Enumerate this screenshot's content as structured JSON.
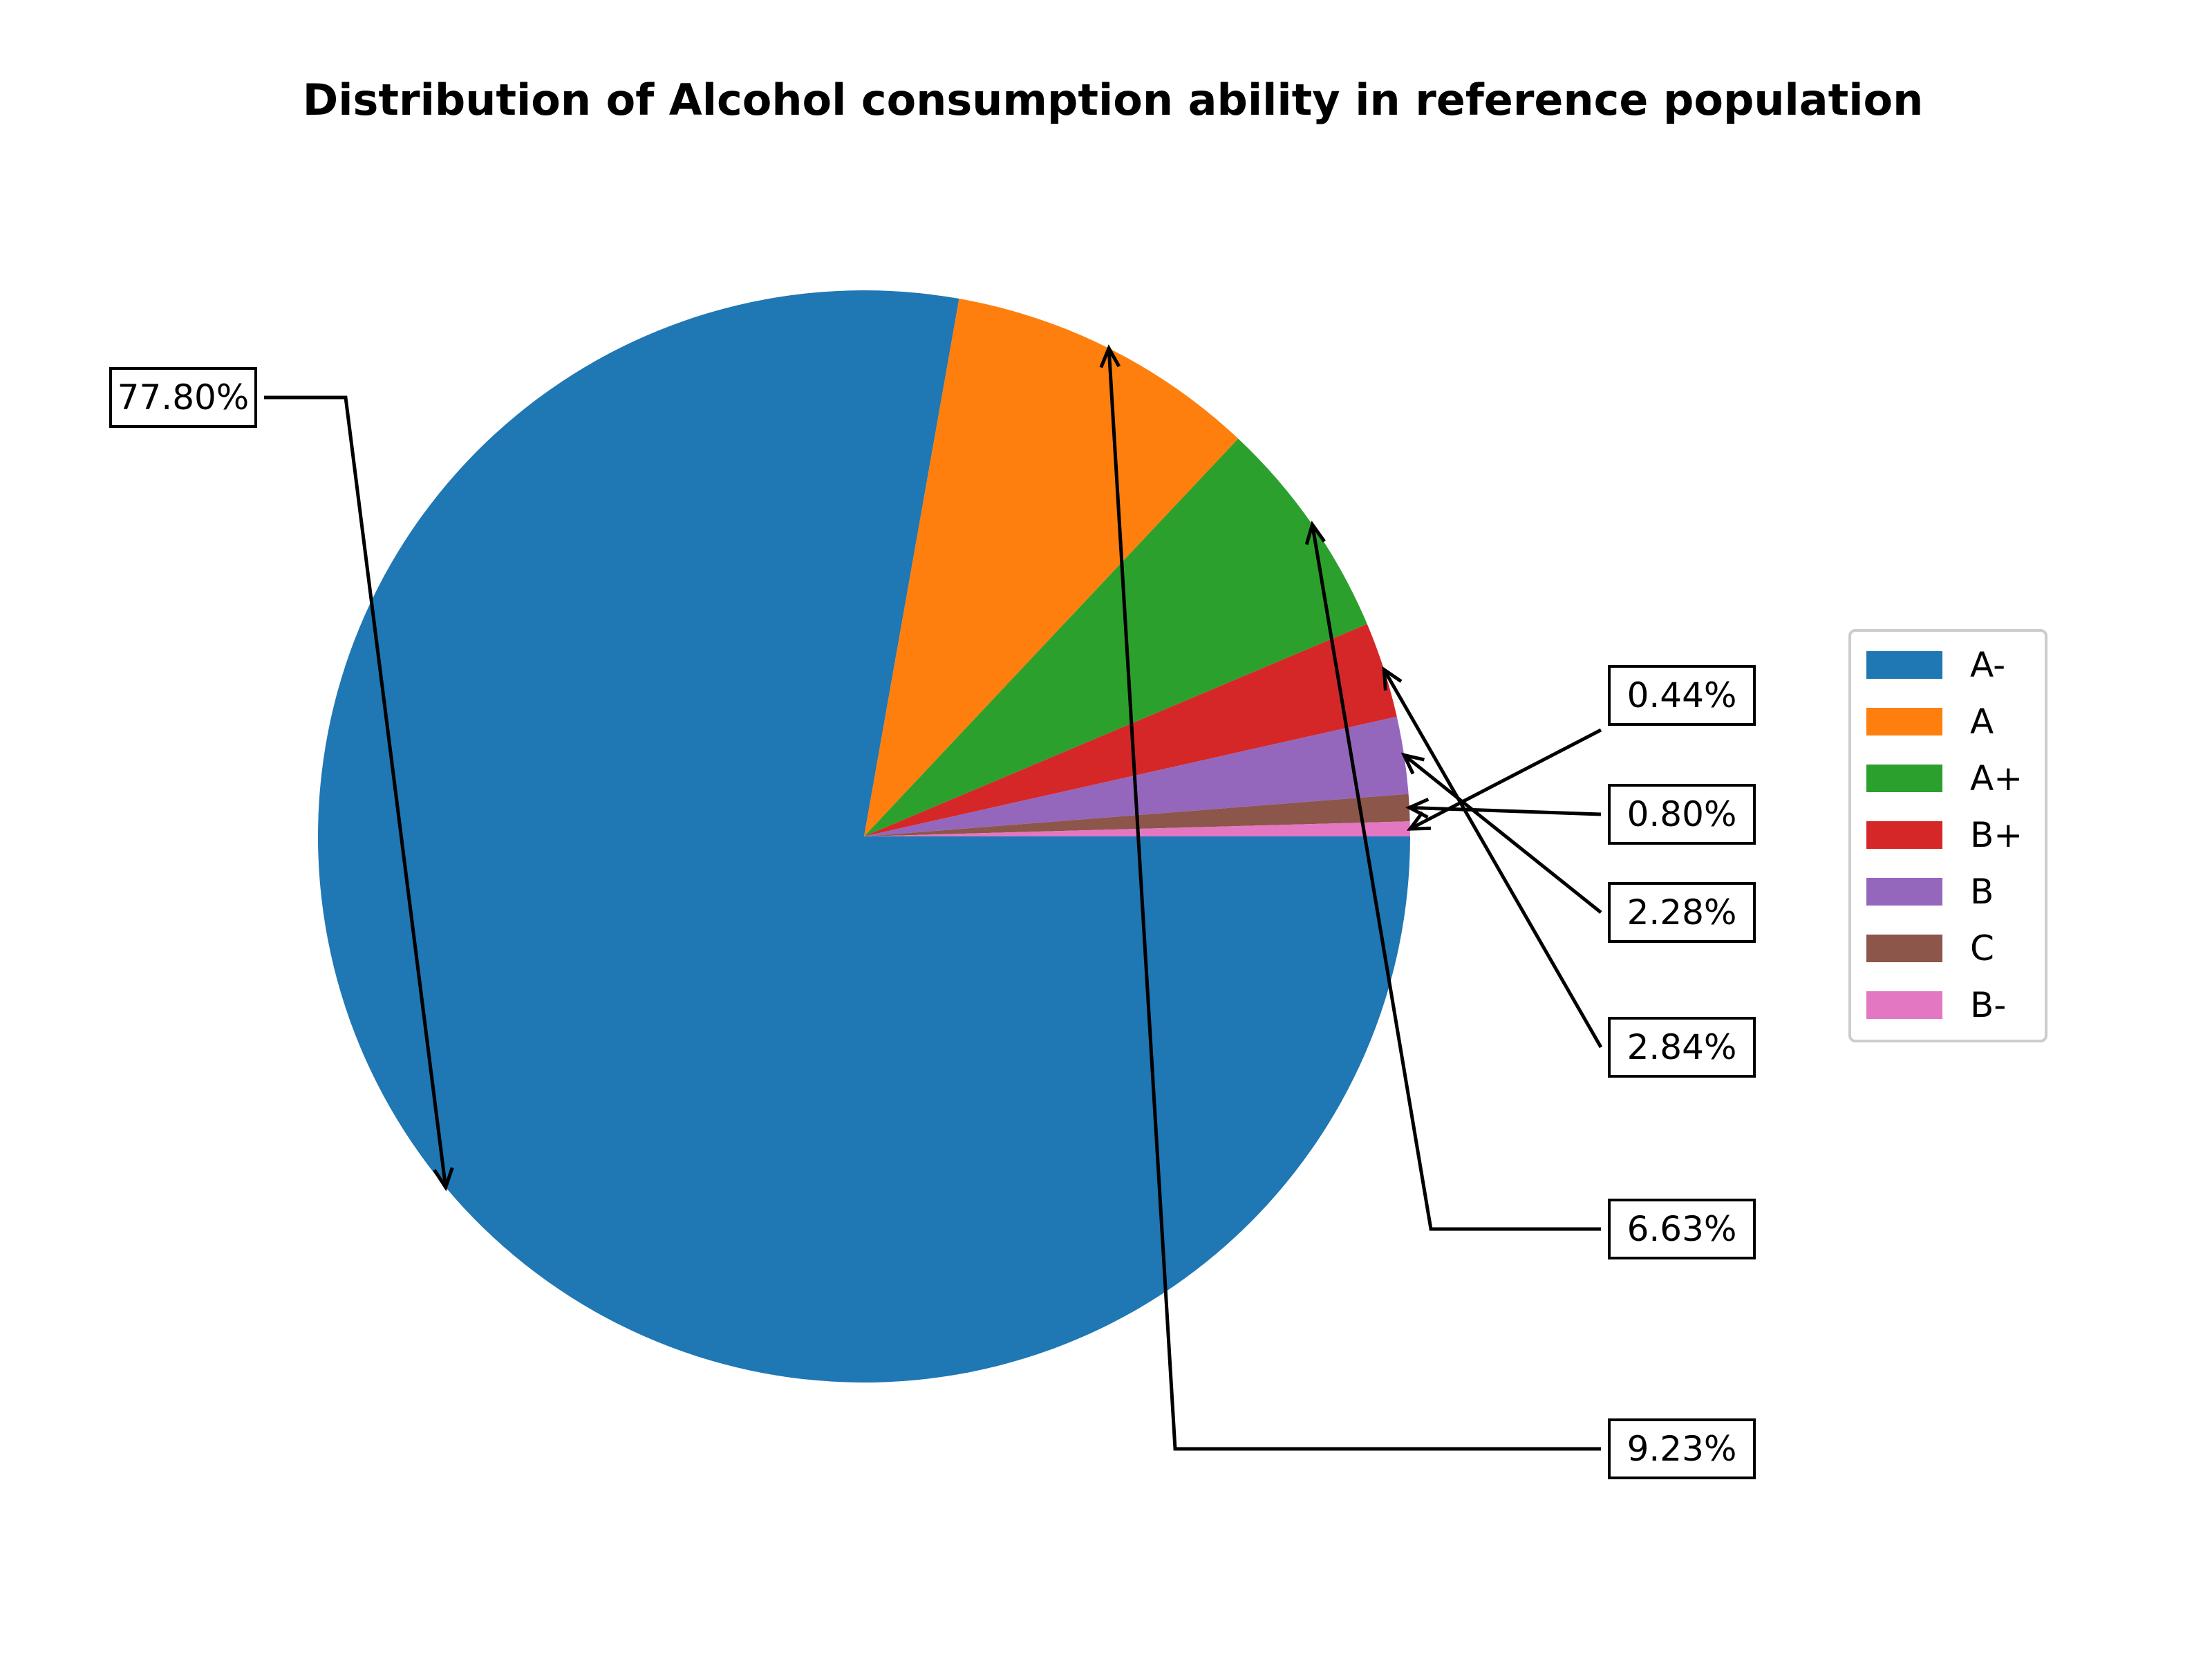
{
  "chart_data": {
    "type": "pie",
    "title": "Distribution of Alcohol consumption ability in reference population",
    "start_angle_deg": 0,
    "direction": "clockwise",
    "slices": [
      {
        "label": "A-",
        "value": 77.8,
        "pct_label": "77.80%",
        "color": "#1f77b4"
      },
      {
        "label": "A",
        "value": 9.23,
        "pct_label": "9.23%",
        "color": "#ff7f0e"
      },
      {
        "label": "A+",
        "value": 6.63,
        "pct_label": "6.63%",
        "color": "#2ca02c"
      },
      {
        "label": "B+",
        "value": 2.84,
        "pct_label": "2.84%",
        "color": "#d62728"
      },
      {
        "label": "B",
        "value": 2.28,
        "pct_label": "2.28%",
        "color": "#9467bd"
      },
      {
        "label": "C",
        "value": 0.8,
        "pct_label": "0.80%",
        "color": "#8c564b"
      },
      {
        "label": "B-",
        "value": 0.44,
        "pct_label": "0.44%",
        "color": "#e377c2"
      }
    ],
    "legend_position": "right"
  }
}
